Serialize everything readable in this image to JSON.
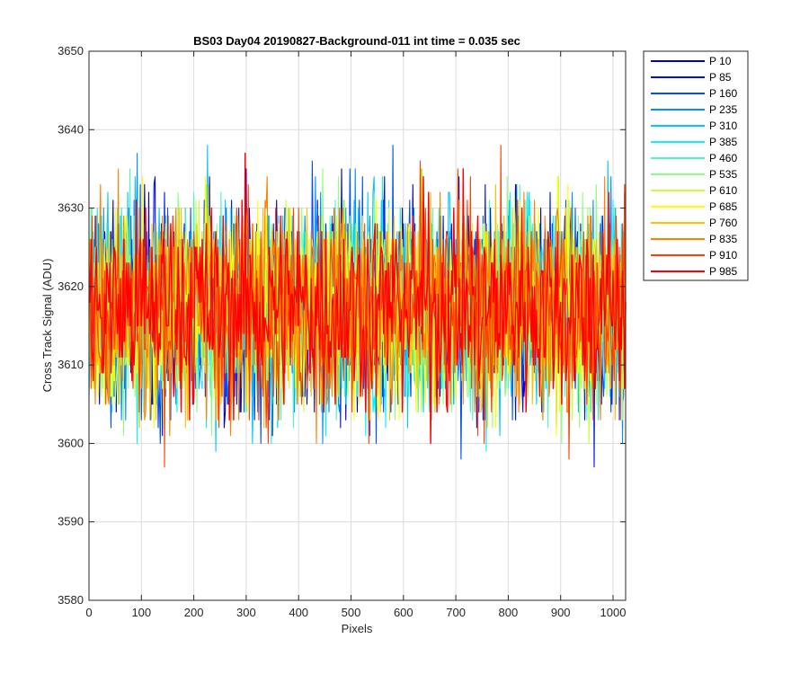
{
  "chart_data": {
    "type": "line",
    "title": "BS03 Day04 20190827-Background-011 int time = 0.035 sec",
    "xlabel": "Pixels",
    "ylabel": "Cross Track Signal (ADU)",
    "xlim": [
      0,
      1024
    ],
    "ylim": [
      3580,
      3650
    ],
    "xticks": [
      0,
      100,
      200,
      300,
      400,
      500,
      600,
      700,
      800,
      900,
      1000
    ],
    "yticks": [
      3580,
      3590,
      3600,
      3610,
      3620,
      3630,
      3640,
      3650
    ],
    "grid": true,
    "legend_position": "outside-top-right",
    "noise_profile": {
      "mean": 3617.5,
      "std": 6.5
    },
    "series": [
      {
        "name": "P 10",
        "color": "#0000BF"
      },
      {
        "name": "P 85",
        "color": "#0010E0"
      },
      {
        "name": "P 160",
        "color": "#0050F5"
      },
      {
        "name": "P 235",
        "color": "#0090FF"
      },
      {
        "name": "P 310",
        "color": "#00C8FF"
      },
      {
        "name": "P 385",
        "color": "#10F0F0"
      },
      {
        "name": "P 460",
        "color": "#50F5C0"
      },
      {
        "name": "P 535",
        "color": "#8CFF80"
      },
      {
        "name": "P 610",
        "color": "#C8FF40"
      },
      {
        "name": "P 685",
        "color": "#FFFF00"
      },
      {
        "name": "P 760",
        "color": "#FFC000"
      },
      {
        "name": "P 835",
        "color": "#FF8000"
      },
      {
        "name": "P 910",
        "color": "#FF4000"
      },
      {
        "name": "P 985",
        "color": "#FF0000"
      }
    ]
  }
}
